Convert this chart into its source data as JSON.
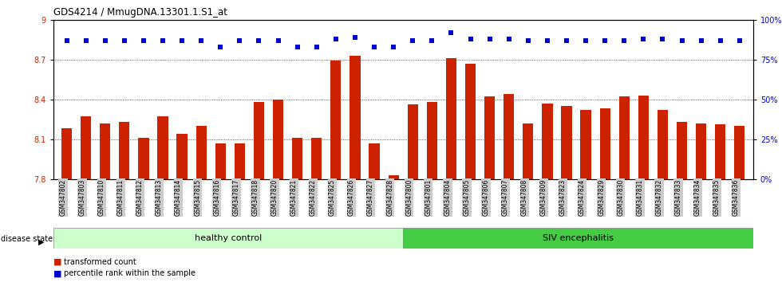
{
  "title": "GDS4214 / MmugDNA.13301.1.S1_at",
  "categories": [
    "GSM347802",
    "GSM347803",
    "GSM347810",
    "GSM347811",
    "GSM347812",
    "GSM347813",
    "GSM347814",
    "GSM347815",
    "GSM347816",
    "GSM347817",
    "GSM347818",
    "GSM347820",
    "GSM347821",
    "GSM347822",
    "GSM347825",
    "GSM347826",
    "GSM347827",
    "GSM347828",
    "GSM347800",
    "GSM347801",
    "GSM347804",
    "GSM347805",
    "GSM347806",
    "GSM347807",
    "GSM347808",
    "GSM347809",
    "GSM347823",
    "GSM347824",
    "GSM347829",
    "GSM347830",
    "GSM347831",
    "GSM347832",
    "GSM347833",
    "GSM347834",
    "GSM347835",
    "GSM347836"
  ],
  "bar_values": [
    8.18,
    8.27,
    8.22,
    8.23,
    8.11,
    8.27,
    8.14,
    8.2,
    8.07,
    8.07,
    8.38,
    8.4,
    8.11,
    8.11,
    8.69,
    8.73,
    8.07,
    7.83,
    8.36,
    8.38,
    8.71,
    8.67,
    8.42,
    8.44,
    8.22,
    8.37,
    8.35,
    8.32,
    8.33,
    8.42,
    8.43,
    8.32,
    8.23,
    8.22,
    8.21,
    8.2
  ],
  "percentile_values": [
    87,
    87,
    87,
    87,
    87,
    87,
    87,
    87,
    83,
    87,
    87,
    87,
    83,
    83,
    88,
    89,
    83,
    83,
    87,
    87,
    92,
    88,
    88,
    88,
    87,
    87,
    87,
    87,
    87,
    87,
    88,
    88,
    87,
    87,
    87,
    87
  ],
  "bar_color": "#cc2200",
  "dot_color": "#0000cc",
  "healthy_count": 18,
  "ylim_left": [
    7.8,
    9.0
  ],
  "ylim_right": [
    0,
    100
  ],
  "yticks_left": [
    7.8,
    8.1,
    8.4,
    8.7,
    9.0
  ],
  "ytick_labels_left": [
    "7.8",
    "8.1",
    "8.4",
    "8.7",
    "9"
  ],
  "yticks_right": [
    0,
    25,
    50,
    75,
    100
  ],
  "ytick_labels_right": [
    "0%",
    "25%",
    "50%",
    "75%",
    "100%"
  ],
  "ylabel_left_color": "#cc2200",
  "ylabel_right_color": "#0000cc",
  "healthy_label": "healthy control",
  "siv_label": "SIV encephalitis",
  "disease_state_label": "disease state",
  "legend_bar_label": "transformed count",
  "legend_dot_label": "percentile rank within the sample",
  "healthy_bg": "#ccffcc",
  "siv_bg": "#44cc44",
  "xticklabel_bg": "#cccccc",
  "grid_lines": [
    8.1,
    8.4,
    8.7
  ]
}
